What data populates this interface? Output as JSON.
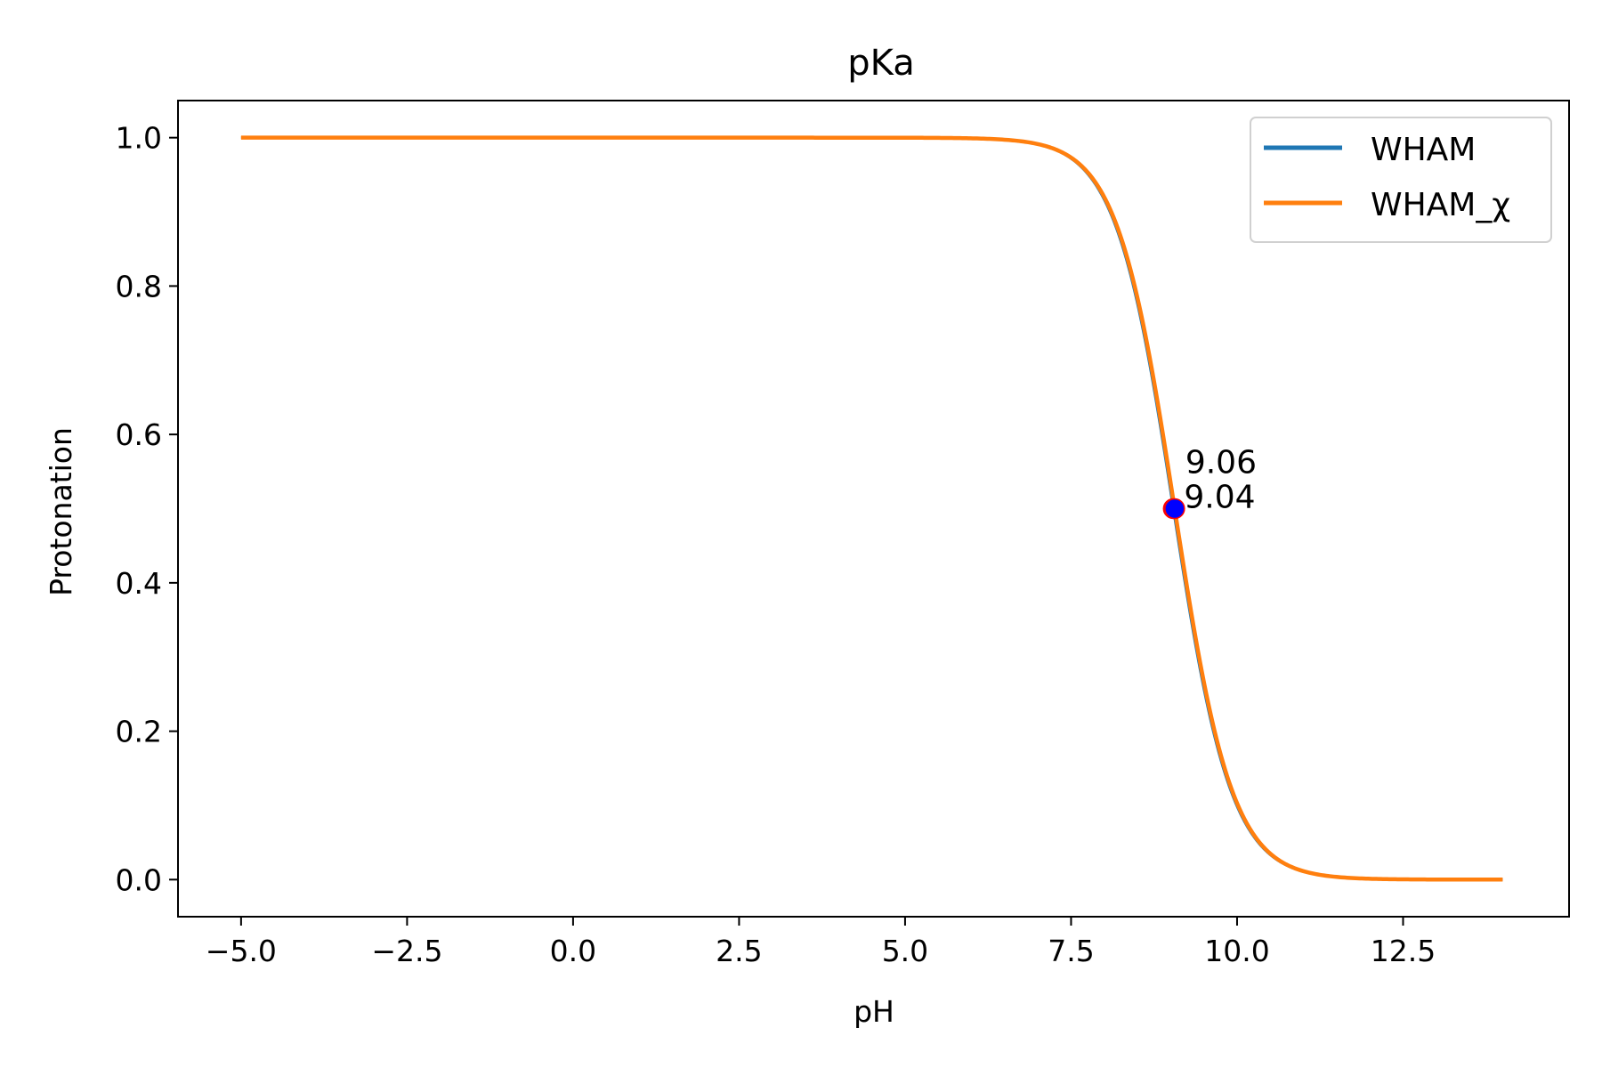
{
  "chart_data": {
    "type": "line",
    "title": "pKa",
    "xlabel": "pH",
    "ylabel": "Protonation",
    "xlim": [
      -5.95,
      15.0
    ],
    "ylim": [
      -0.05,
      1.05
    ],
    "xticks": [
      -5.0,
      -2.5,
      0.0,
      2.5,
      5.0,
      7.5,
      10.0,
      12.5
    ],
    "xtick_labels": [
      "−5.0",
      "−2.5",
      "0.0",
      "2.5",
      "5.0",
      "7.5",
      "10.0",
      "12.5"
    ],
    "yticks": [
      0.0,
      0.2,
      0.4,
      0.6,
      0.8,
      1.0
    ],
    "ytick_labels": [
      "0.0",
      "0.2",
      "0.4",
      "0.6",
      "0.8",
      "1.0"
    ],
    "grid": false,
    "legend_position": "top-right",
    "x": [
      -5.0,
      -2.5,
      0.0,
      2.5,
      5.0,
      6.0,
      6.5,
      7.0,
      7.5,
      7.75,
      8.0,
      8.25,
      8.5,
      8.75,
      9.0,
      9.25,
      9.5,
      9.75,
      10.0,
      10.25,
      10.5,
      11.0,
      11.5,
      12.0,
      12.5,
      13.0,
      14.0
    ],
    "series": [
      {
        "name": "WHAM",
        "color": "#1f77b4",
        "pka": 9.04,
        "values": [
          1.0,
          1.0,
          1.0,
          1.0,
          1.0,
          0.9991,
          0.9971,
          0.9909,
          0.9719,
          0.9516,
          0.9174,
          0.8626,
          0.7818,
          0.6744,
          0.5493,
          0.4225,
          0.309,
          0.215,
          0.1446,
          0.0948,
          0.0608,
          0.0241,
          0.0093,
          0.0035,
          0.0013,
          0.0005,
          0.0001
        ]
      },
      {
        "name": "WHAM_χ",
        "color": "#ff7f0e",
        "pka": 9.06,
        "values": [
          1.0,
          1.0,
          1.0,
          1.0,
          1.0,
          0.9991,
          0.9972,
          0.9912,
          0.9731,
          0.9536,
          0.9207,
          0.8675,
          0.7885,
          0.6826,
          0.5581,
          0.4309,
          0.3162,
          0.2207,
          0.1488,
          0.0977,
          0.0628,
          0.025,
          0.0096,
          0.0036,
          0.0014,
          0.0005,
          0.0001
        ]
      }
    ],
    "pka_points": [
      {
        "x": 9.04,
        "y": 0.5,
        "label": "9.04",
        "color": "#0000ff",
        "edge": "#ff0000"
      },
      {
        "x": 9.06,
        "y": 0.5,
        "label": "9.06",
        "color": "#0000ff",
        "edge": "#ff0000"
      }
    ]
  }
}
